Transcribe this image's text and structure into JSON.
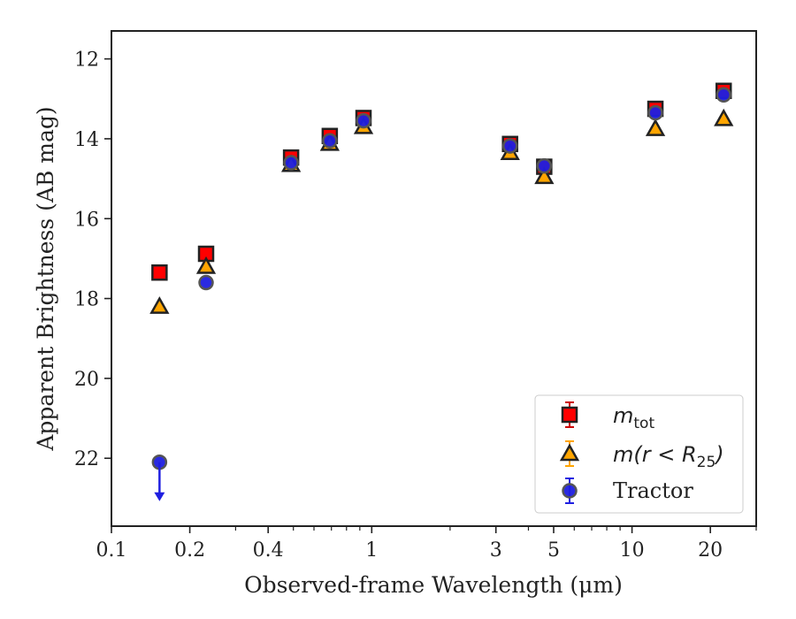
{
  "chart_data": {
    "type": "scatter",
    "xlabel": "Observed-frame Wavelength (μm)",
    "ylabel": "Apparent Brightness (AB mag)",
    "xscale": "log",
    "xlim": [
      0.1,
      30
    ],
    "ylim": [
      23.7,
      11.3
    ],
    "y_inverted": true,
    "x_tick_labels": [
      {
        "value": 0.1,
        "label": "0.1"
      },
      {
        "value": 0.2,
        "label": "0.2"
      },
      {
        "value": 0.4,
        "label": "0.4"
      },
      {
        "value": 1,
        "label": "1"
      },
      {
        "value": 3,
        "label": "3"
      },
      {
        "value": 5,
        "label": "5"
      },
      {
        "value": 10,
        "label": "10"
      },
      {
        "value": 20,
        "label": "20"
      }
    ],
    "y_ticks": [
      12,
      14,
      16,
      18,
      20,
      22
    ],
    "grid": false,
    "legend_position": "lower-right",
    "series": [
      {
        "name": "m_tot",
        "legend_main": "m",
        "legend_sub": "tot",
        "marker": "square",
        "color": "#ff0000",
        "edge_color": "#222222",
        "x": [
          0.153,
          0.231,
          0.49,
          0.69,
          0.93,
          3.4,
          4.6,
          12.3,
          22.5
        ],
        "y": [
          17.35,
          16.88,
          14.47,
          13.93,
          13.48,
          14.13,
          14.7,
          13.25,
          12.8
        ]
      },
      {
        "name": "m(r < R_25)",
        "legend_main": "m(r < R",
        "legend_sub": "25",
        "legend_tail": ")",
        "marker": "triangle",
        "color": "#ffa500",
        "edge_color": "#222222",
        "x": [
          0.153,
          0.231,
          0.49,
          0.69,
          0.93,
          3.4,
          4.6,
          12.3,
          22.5
        ],
        "y": [
          18.2,
          17.2,
          14.65,
          14.12,
          13.7,
          14.35,
          14.95,
          13.75,
          13.5
        ]
      },
      {
        "name": "Tractor",
        "marker": "circle",
        "color": "#1f1fe0",
        "edge_color": "#555555",
        "x": [
          0.153,
          0.231,
          0.49,
          0.69,
          0.93,
          3.4,
          4.6,
          12.3,
          22.5
        ],
        "y": [
          22.1,
          17.6,
          14.6,
          14.05,
          13.55,
          14.18,
          14.68,
          13.35,
          12.9
        ],
        "upper_limit": [
          true,
          false,
          false,
          false,
          false,
          false,
          false,
          false,
          false
        ]
      }
    ]
  }
}
